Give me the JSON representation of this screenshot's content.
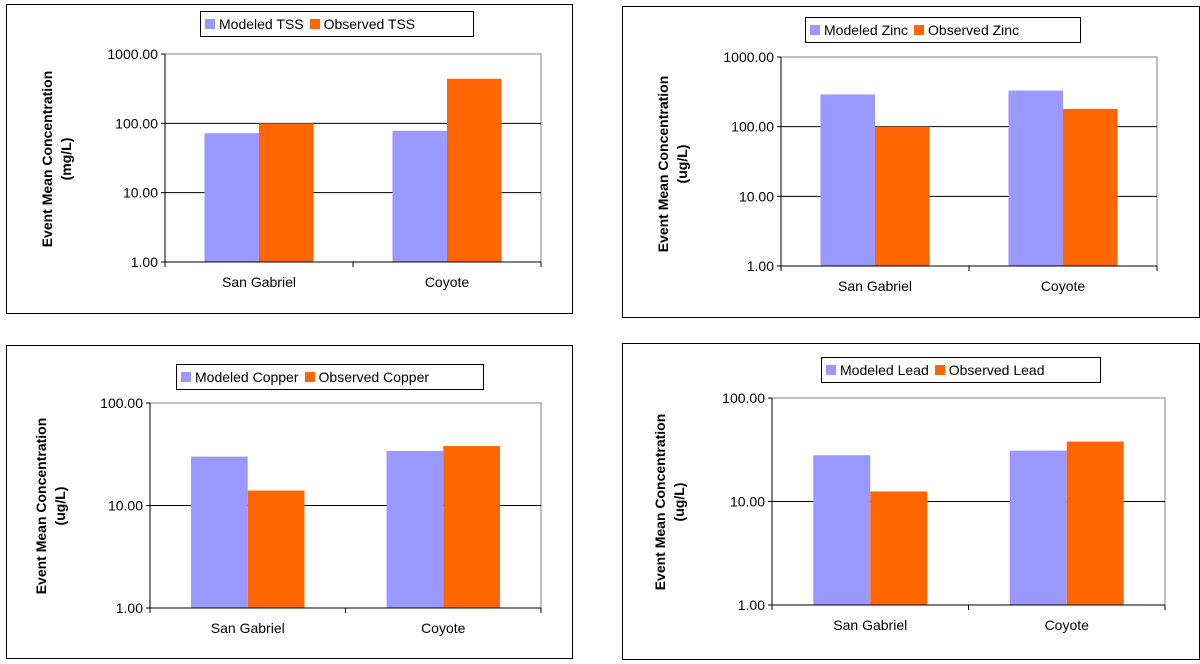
{
  "colors": {
    "modeled": "#9999FF",
    "observed": "#FF6600",
    "plot_border": "#808080",
    "gridline": "#000000"
  },
  "chart_data": [
    {
      "type": "bar",
      "scale": "log",
      "ylim": [
        1,
        1000
      ],
      "yticks": [
        "1000.00",
        "100.00",
        "10.00",
        "1.00"
      ],
      "categories": [
        "San Gabriel",
        "Coyote"
      ],
      "ylabel": [
        "Event Mean Concentration",
        "(mg/L)"
      ],
      "legend": "top",
      "series": [
        {
          "name": "Modeled TSS",
          "values": [
            72,
            78
          ]
        },
        {
          "name": "Observed TSS",
          "values": [
            100,
            440
          ]
        }
      ]
    },
    {
      "type": "bar",
      "scale": "log",
      "ylim": [
        1,
        1000
      ],
      "yticks": [
        "1000.00",
        "100.00",
        "10.00",
        "1.00"
      ],
      "categories": [
        "San Gabriel",
        "Coyote"
      ],
      "ylabel": [
        "Event Mean Concentration",
        "(ug/L)"
      ],
      "legend": "top",
      "series": [
        {
          "name": "Modeled Zinc",
          "values": [
            290,
            330
          ]
        },
        {
          "name": "Observed Zinc",
          "values": [
            100,
            180
          ]
        }
      ]
    },
    {
      "type": "bar",
      "scale": "log",
      "ylim": [
        1,
        100
      ],
      "yticks": [
        "100.00",
        "10.00",
        "1.00"
      ],
      "categories": [
        "San Gabriel",
        "Coyote"
      ],
      "ylabel": [
        "Event Mean Concentration",
        "(ug/L)"
      ],
      "legend": "top",
      "series": [
        {
          "name": "Modeled Copper",
          "values": [
            30,
            34
          ]
        },
        {
          "name": "Observed Copper",
          "values": [
            14,
            38
          ]
        }
      ]
    },
    {
      "type": "bar",
      "scale": "log",
      "ylim": [
        1,
        100
      ],
      "yticks": [
        "100.00",
        "10.00",
        "1.00"
      ],
      "categories": [
        "San Gabriel",
        "Coyote"
      ],
      "ylabel": [
        "Event Mean Concentration",
        "(ug/L)"
      ],
      "legend": "top",
      "series": [
        {
          "name": "Modeled Lead",
          "values": [
            28,
            31
          ]
        },
        {
          "name": "Observed Lead",
          "values": [
            12.5,
            38
          ]
        }
      ]
    }
  ]
}
